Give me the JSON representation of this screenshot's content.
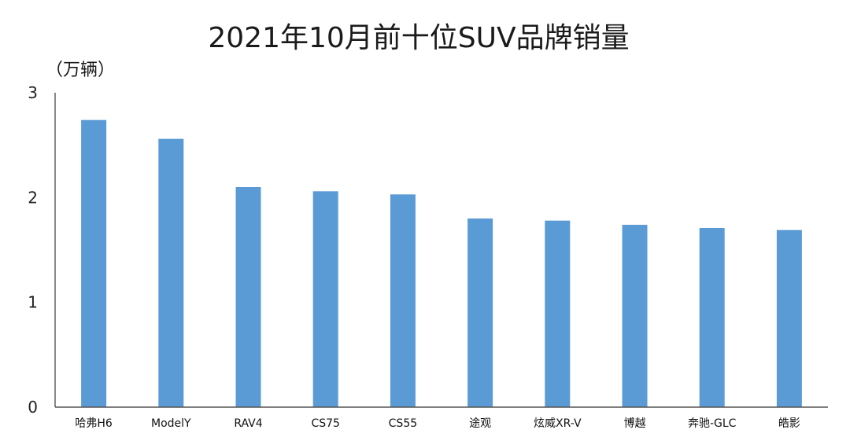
{
  "chart_data": {
    "type": "bar",
    "title": "2021年10月前十位SUV品牌销量",
    "unit_label": "（万辆）",
    "categories": [
      "哈弗H6",
      "ModelY",
      "RAV4",
      "CS75",
      "CS55",
      "途观",
      "炫威XR-V",
      "博越",
      "奔驰-GLC",
      "皓影"
    ],
    "values": [
      2.74,
      2.56,
      2.1,
      2.06,
      2.03,
      1.8,
      1.78,
      1.74,
      1.71,
      1.69
    ],
    "ylim": [
      0,
      3
    ],
    "yticks": [
      "0",
      "1",
      "2",
      "3"
    ],
    "grid": false,
    "legend": "none",
    "colors": {
      "bar": "#5b9bd5"
    }
  }
}
